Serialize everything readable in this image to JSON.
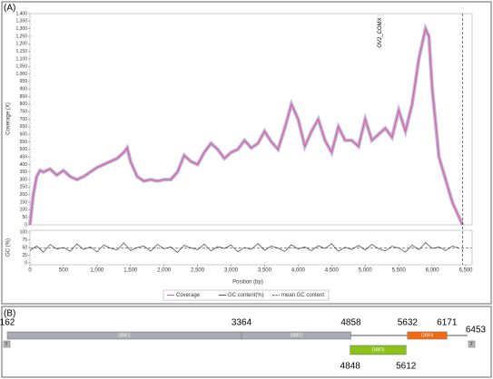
{
  "chart_data": [
    {
      "type": "line",
      "panel": "(A)",
      "ylabel": "Coverage (X)",
      "x": [
        0,
        50,
        100,
        150,
        200,
        300,
        400,
        500,
        600,
        700,
        800,
        900,
        1000,
        1100,
        1200,
        1300,
        1400,
        1450,
        1500,
        1600,
        1700,
        1800,
        1900,
        2000,
        2100,
        2200,
        2300,
        2400,
        2500,
        2600,
        2700,
        2800,
        2900,
        3000,
        3100,
        3200,
        3300,
        3400,
        3500,
        3600,
        3700,
        3800,
        3900,
        4000,
        4100,
        4200,
        4300,
        4400,
        4500,
        4600,
        4700,
        4800,
        4900,
        5000,
        5100,
        5200,
        5300,
        5400,
        5500,
        5600,
        5700,
        5800,
        5900,
        5950,
        6000,
        6100,
        6200,
        6300,
        6400,
        6453
      ],
      "series": [
        {
          "name": "Coverage",
          "color": "#e8607a",
          "values": [
            0,
            200,
            320,
            360,
            350,
            370,
            330,
            360,
            320,
            300,
            320,
            350,
            380,
            400,
            420,
            440,
            480,
            510,
            420,
            320,
            290,
            300,
            290,
            300,
            300,
            350,
            460,
            420,
            400,
            480,
            540,
            500,
            440,
            480,
            500,
            560,
            510,
            540,
            620,
            550,
            500,
            640,
            800,
            700,
            520,
            620,
            700,
            560,
            480,
            650,
            560,
            560,
            520,
            700,
            560,
            600,
            640,
            580,
            760,
            620,
            800,
            1100,
            1300,
            1250,
            900,
            450,
            300,
            150,
            50,
            0
          ]
        }
      ],
      "xlim": [
        0,
        6500
      ],
      "ylim": [
        0,
        1400
      ],
      "yticks": [
        0,
        50,
        100,
        150,
        200,
        250,
        300,
        350,
        400,
        450,
        500,
        550,
        600,
        650,
        700,
        750,
        800,
        850,
        900,
        950,
        {
          "value": 1000,
          "label": "1,000"
        },
        {
          "value": 1050,
          "label": "1,050"
        },
        {
          "value": 1100,
          "label": "1,100"
        },
        {
          "value": 1150,
          "label": "1,150"
        },
        {
          "value": 1200,
          "label": "1,200"
        },
        {
          "value": 1250,
          "label": "1,250"
        },
        {
          "value": 1300,
          "label": "1,300"
        },
        {
          "value": 1350,
          "label": "1,350"
        },
        {
          "value": 1400,
          "label": "1,400"
        }
      ],
      "annotation": {
        "text": "OV2_COMX",
        "x": 5220
      },
      "marker_x": 6453
    },
    {
      "type": "line",
      "ylabel": "GC (%)",
      "xlabel": "Position (bp)",
      "x": [
        0,
        100,
        200,
        300,
        400,
        500,
        600,
        700,
        800,
        900,
        1000,
        1100,
        1200,
        1300,
        1400,
        1500,
        1600,
        1700,
        1800,
        1900,
        2000,
        2100,
        2200,
        2300,
        2400,
        2500,
        2600,
        2700,
        2800,
        2900,
        3000,
        3100,
        3200,
        3300,
        3400,
        3500,
        3600,
        3700,
        3800,
        3900,
        4000,
        4100,
        4200,
        4300,
        4400,
        4500,
        4600,
        4700,
        4800,
        4900,
        5000,
        5100,
        5200,
        5300,
        5400,
        5500,
        5600,
        5700,
        5800,
        5900,
        6000,
        6100,
        6200,
        6300,
        6400
      ],
      "series": [
        {
          "name": "GC content(%)",
          "color": "#555555",
          "values": [
            40,
            55,
            35,
            60,
            45,
            50,
            38,
            62,
            44,
            52,
            36,
            58,
            48,
            42,
            65,
            40,
            50,
            55,
            38,
            60,
            46,
            52,
            34,
            57,
            49,
            43,
            61,
            39,
            53,
            47,
            58,
            36,
            50,
            44,
            63,
            41,
            55,
            48,
            37,
            59,
            45,
            52,
            40,
            56,
            47,
            62,
            38,
            51,
            44,
            57,
            42,
            60,
            46,
            39,
            54,
            49,
            35,
            58,
            43,
            66,
            47,
            52,
            40,
            55,
            48
          ]
        },
        {
          "name": "mean GC content",
          "color": "#555555",
          "value": 48
        }
      ],
      "xlim": [
        0,
        6500
      ],
      "ylim": [
        0,
        100
      ],
      "yticks": [
        0,
        25,
        50,
        75,
        100
      ],
      "xticks": [
        0,
        500,
        {
          "value": 1000,
          "label": "1,000"
        },
        {
          "value": 1500,
          "label": "1,500"
        },
        {
          "value": 2000,
          "label": "2,000"
        },
        {
          "value": 2500,
          "label": "2,500"
        },
        {
          "value": 3000,
          "label": "3,000"
        },
        {
          "value": 3500,
          "label": "3,500"
        },
        {
          "value": 4000,
          "label": "4,000"
        },
        {
          "value": 4500,
          "label": "4,500"
        },
        {
          "value": 5000,
          "label": "5,000"
        },
        {
          "value": 5500,
          "label": "5,500"
        },
        {
          "value": 6000,
          "label": "6,000"
        },
        {
          "value": 6500,
          "label": "6,500"
        }
      ]
    }
  ],
  "genome": {
    "panel": "(B)",
    "start": 162,
    "end": 6453,
    "five": "5'",
    "three": "3'",
    "orfs": [
      {
        "name": "ORF1",
        "start": 162,
        "end": 3364,
        "color": "#a9adb3"
      },
      {
        "name": "ORF2",
        "start": 3364,
        "end": 4858,
        "color": "#a9adb3"
      },
      {
        "name": "ORF3",
        "start": 4848,
        "end": 5612,
        "color": "#8cc21a"
      },
      {
        "name": "ORF4",
        "start": 5632,
        "end": 6171,
        "color": "#f26a10"
      }
    ]
  }
}
